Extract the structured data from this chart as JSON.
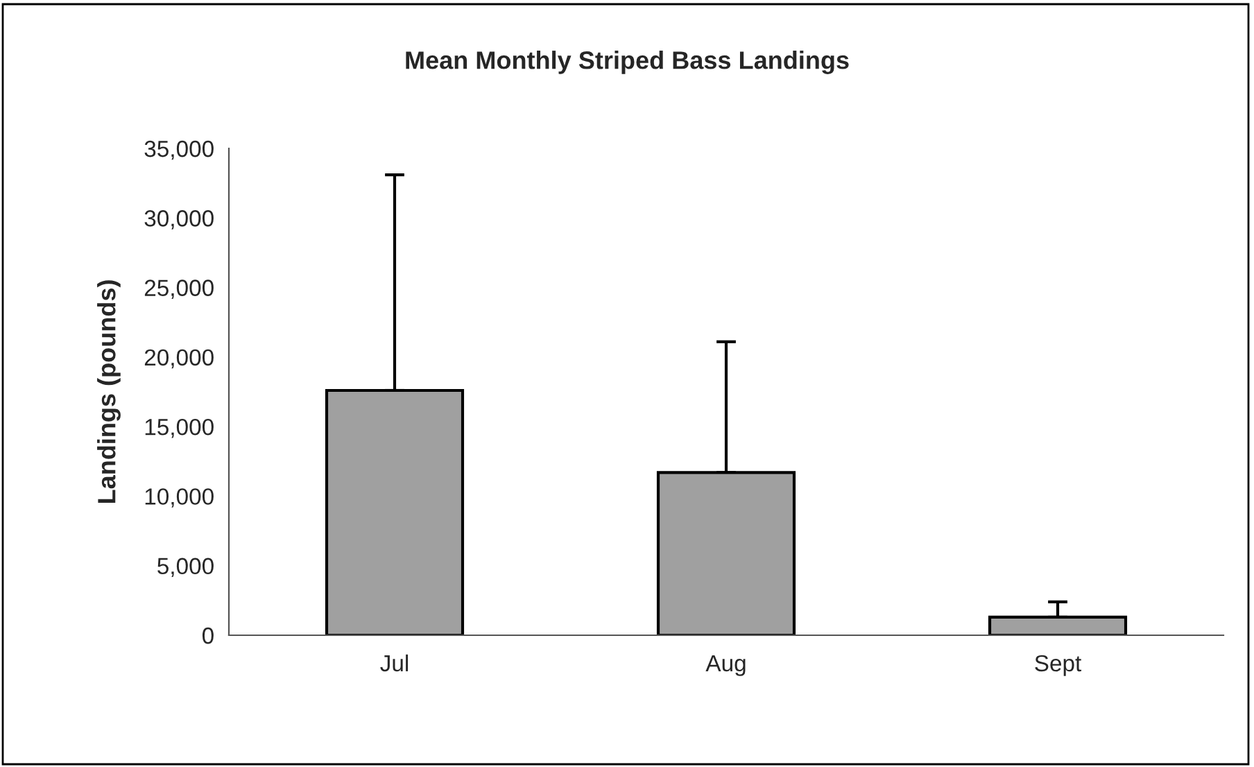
{
  "chart_data": {
    "type": "bar",
    "title": "Mean Monthly Striped Bass Landings",
    "ylabel": "Landings (pounds)",
    "categories": [
      "Jul",
      "Aug",
      "Sept"
    ],
    "values": [
      17600,
      11700,
      1300
    ],
    "errors": [
      [
        17600,
        33100
      ],
      [
        11700,
        21100
      ],
      [
        1300,
        2400
      ]
    ],
    "color": "#a0a0a0",
    "ylim": [
      0,
      35000
    ],
    "yticks": [
      {
        "value": 0,
        "label": "0"
      },
      {
        "value": 5000,
        "label": "5,000"
      },
      {
        "value": 10000,
        "label": "10,000"
      },
      {
        "value": 15000,
        "label": "15,000"
      },
      {
        "value": 20000,
        "label": "20,000"
      },
      {
        "value": 25000,
        "label": "25,000"
      },
      {
        "value": 30000,
        "label": "30,000"
      },
      {
        "value": 35000,
        "label": "35,000"
      }
    ],
    "grid": false,
    "legend": false
  }
}
